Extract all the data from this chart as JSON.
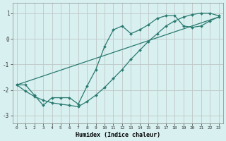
{
  "xlabel": "Humidex (Indice chaleur)",
  "ylabel": "",
  "bg_color": "#d8f0f0",
  "grid_color": "#c0c8c8",
  "line_color": "#2a7a70",
  "xlim": [
    -0.5,
    23.5
  ],
  "ylim": [
    -3.3,
    1.4
  ],
  "xticks": [
    0,
    1,
    2,
    3,
    4,
    5,
    6,
    7,
    8,
    9,
    10,
    11,
    12,
    13,
    14,
    15,
    16,
    17,
    18,
    19,
    20,
    21,
    22,
    23
  ],
  "yticks": [
    -3,
    -2,
    -1,
    0,
    1
  ],
  "line1_x": [
    0,
    1,
    2,
    3,
    4,
    5,
    6,
    7,
    8,
    9,
    10,
    11,
    12,
    13,
    14,
    15,
    16,
    17,
    18,
    19,
    20,
    21,
    22,
    23
  ],
  "line1_y": [
    -1.8,
    -1.8,
    -2.2,
    -2.6,
    -2.3,
    -2.3,
    -2.3,
    -2.55,
    -1.85,
    -1.2,
    -0.3,
    0.35,
    0.5,
    0.2,
    0.35,
    0.55,
    0.8,
    0.9,
    0.9,
    0.5,
    0.45,
    0.5,
    0.7,
    0.85
  ],
  "line2_x": [
    0,
    23
  ],
  "line2_y": [
    -1.8,
    0.85
  ],
  "line3_x": [
    0,
    1,
    2,
    3,
    4,
    5,
    6,
    7,
    8,
    9,
    10,
    11,
    12,
    13,
    14,
    15,
    16,
    17,
    18,
    19,
    20,
    21,
    22,
    23
  ],
  "line3_y": [
    -1.8,
    -2.05,
    -2.25,
    -2.4,
    -2.5,
    -2.55,
    -2.6,
    -2.65,
    -2.45,
    -2.2,
    -1.9,
    -1.55,
    -1.2,
    -0.8,
    -0.45,
    -0.1,
    0.2,
    0.5,
    0.7,
    0.85,
    0.95,
    1.0,
    1.0,
    0.9
  ]
}
